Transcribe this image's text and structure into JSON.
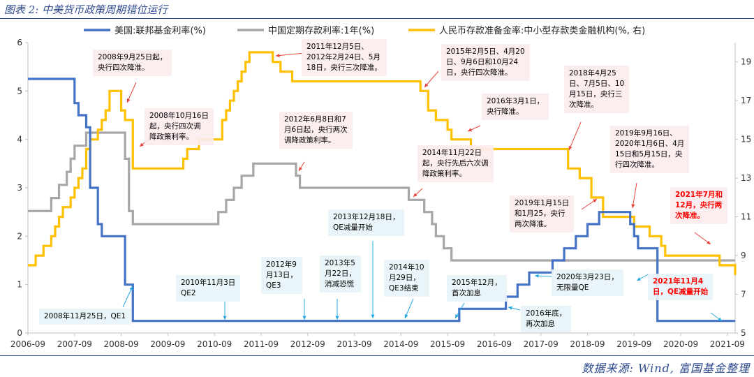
{
  "figure": {
    "title": "图表 2: 中美货币政策周期错位运行",
    "source": "数据来源: Wind, 富国基金整理"
  },
  "chart_data": {
    "type": "line",
    "legend": {
      "placement": "top",
      "items": [
        {
          "label": "美国:联邦基金利率(%)",
          "color": "#4472c4"
        },
        {
          "label": "中国定期存款利率:1年(%)",
          "color": "#a6a6a6"
        },
        {
          "label": "人民币存款准备金率:中小型存款类金融机构(%, 右)",
          "color": "#ffc000"
        }
      ]
    },
    "x_axis": {
      "ticks": [
        "2006-09",
        "2007-09",
        "2008-09",
        "2009-09",
        "2010-09",
        "2011-09",
        "2012-09",
        "2013-09",
        "2014-09",
        "2015-09",
        "2016-09",
        "2017-09",
        "2018-09",
        "2019-09",
        "2020-09",
        "2021-09"
      ],
      "range": [
        "2006-09",
        "2021-11"
      ]
    },
    "y_axis_left": {
      "ticks": [
        "0",
        "1",
        "2",
        "3",
        "4",
        "5",
        "6"
      ],
      "range": [
        0,
        6
      ]
    },
    "y_axis_right": {
      "ticks": [
        "5",
        "7",
        "9",
        "11",
        "13",
        "15",
        "17",
        "19"
      ],
      "range": [
        5,
        20
      ]
    },
    "grid": false,
    "series": [
      {
        "name": "美国:联邦基金利率(%)",
        "axis": "left",
        "color": "#4472c4",
        "points": [
          [
            "2006-09",
            5.25
          ],
          [
            "2007-08",
            5.25
          ],
          [
            "2007-09",
            4.75
          ],
          [
            "2007-10",
            4.5
          ],
          [
            "2007-12",
            4.25
          ],
          [
            "2008-01",
            3.0
          ],
          [
            "2008-03",
            2.25
          ],
          [
            "2008-04",
            2.0
          ],
          [
            "2008-10",
            1.0
          ],
          [
            "2008-12",
            0.25
          ],
          [
            "2015-12",
            0.5
          ],
          [
            "2016-12",
            0.75
          ],
          [
            "2017-03",
            1.0
          ],
          [
            "2017-06",
            1.25
          ],
          [
            "2017-12",
            1.5
          ],
          [
            "2018-03",
            1.75
          ],
          [
            "2018-06",
            2.0
          ],
          [
            "2018-09",
            2.25
          ],
          [
            "2018-12",
            2.5
          ],
          [
            "2019-08",
            2.25
          ],
          [
            "2019-09",
            2.0
          ],
          [
            "2019-10",
            1.75
          ],
          [
            "2020-03",
            0.25
          ],
          [
            "2021-11",
            0.25
          ]
        ]
      },
      {
        "name": "中国定期存款利率:1年(%)",
        "axis": "left",
        "color": "#a6a6a6",
        "points": [
          [
            "2006-09",
            2.52
          ],
          [
            "2007-03",
            2.79
          ],
          [
            "2007-05",
            3.06
          ],
          [
            "2007-07",
            3.33
          ],
          [
            "2007-08",
            3.6
          ],
          [
            "2007-09",
            3.87
          ],
          [
            "2007-12",
            4.14
          ],
          [
            "2008-10",
            3.87
          ],
          [
            "2008-10",
            3.6
          ],
          [
            "2008-11",
            2.52
          ],
          [
            "2008-12",
            2.25
          ],
          [
            "2010-10",
            2.5
          ],
          [
            "2010-12",
            2.75
          ],
          [
            "2011-02",
            3.0
          ],
          [
            "2011-04",
            3.25
          ],
          [
            "2011-07",
            3.5
          ],
          [
            "2012-06",
            3.25
          ],
          [
            "2012-07",
            3.0
          ],
          [
            "2014-11",
            2.75
          ],
          [
            "2015-03",
            2.5
          ],
          [
            "2015-05",
            2.25
          ],
          [
            "2015-06",
            2.0
          ],
          [
            "2015-08",
            1.75
          ],
          [
            "2015-10",
            1.5
          ],
          [
            "2021-11",
            1.5
          ]
        ]
      },
      {
        "name": "人民币存款准备金率:中小型存款类金融机构(%, 右)",
        "axis": "right",
        "color": "#ffc000",
        "points": [
          [
            "2006-09",
            8.5
          ],
          [
            "2006-11",
            9.0
          ],
          [
            "2007-01",
            9.5
          ],
          [
            "2007-03",
            10.0
          ],
          [
            "2007-04",
            10.5
          ],
          [
            "2007-05",
            11.0
          ],
          [
            "2007-06",
            11.5
          ],
          [
            "2007-08",
            12.0
          ],
          [
            "2007-09",
            12.5
          ],
          [
            "2007-10",
            13.0
          ],
          [
            "2007-11",
            13.5
          ],
          [
            "2007-12",
            14.5
          ],
          [
            "2008-01",
            15.0
          ],
          [
            "2008-03",
            15.5
          ],
          [
            "2008-04",
            16.0
          ],
          [
            "2008-05",
            16.5
          ],
          [
            "2008-06",
            17.5
          ],
          [
            "2008-09",
            16.5
          ],
          [
            "2008-10",
            16.0
          ],
          [
            "2008-12",
            14.0
          ],
          [
            "2008-12",
            13.5
          ],
          [
            "2010-01",
            14.0
          ],
          [
            "2010-02",
            14.5
          ],
          [
            "2010-05",
            15.0
          ],
          [
            "2010-11",
            15.5
          ],
          [
            "2010-11",
            16.0
          ],
          [
            "2010-12",
            16.5
          ],
          [
            "2011-01",
            17.0
          ],
          [
            "2011-02",
            17.5
          ],
          [
            "2011-03",
            18.0
          ],
          [
            "2011-04",
            18.5
          ],
          [
            "2011-05",
            19.0
          ],
          [
            "2011-06",
            19.5
          ],
          [
            "2011-12",
            19.0
          ],
          [
            "2012-02",
            18.5
          ],
          [
            "2012-05",
            18.0
          ],
          [
            "2015-02",
            17.5
          ],
          [
            "2015-04",
            16.5
          ],
          [
            "2015-06",
            16.0
          ],
          [
            "2015-09",
            15.5
          ],
          [
            "2015-10",
            15.0
          ],
          [
            "2016-03",
            14.5
          ],
          [
            "2018-04",
            13.5
          ],
          [
            "2018-07",
            13.0
          ],
          [
            "2018-10",
            12.0
          ],
          [
            "2019-01",
            11.5
          ],
          [
            "2019-01",
            11.0
          ],
          [
            "2019-09",
            10.5
          ],
          [
            "2020-01",
            10.0
          ],
          [
            "2020-04",
            9.5
          ],
          [
            "2020-05",
            9.0
          ],
          [
            "2021-07",
            8.5
          ],
          [
            "2021-11",
            8.0
          ]
        ]
      }
    ],
    "annotations": [
      {
        "id": "a1",
        "text": "2008年9月25日起，\n央行四次降准。",
        "style": "pink"
      },
      {
        "id": "a2",
        "text": "2008年10月16日\n起，央行四次调\n降政策利率。",
        "style": "pink"
      },
      {
        "id": "a3",
        "text": "2011年12月5日、\n2012年2月24日、5月\n18日，央行三次降准。",
        "style": "pink"
      },
      {
        "id": "a4",
        "text": "2015年2月5日、4月20\n日、9月6日和10月24\n日，央行四次降准。",
        "style": "pink"
      },
      {
        "id": "a5",
        "text": "2016年3月1日，\n央行降准。",
        "style": "pink"
      },
      {
        "id": "a6",
        "text": "2018年4月25\n日、7月5日、10\n月15日，央行三\n次降准。",
        "style": "pink"
      },
      {
        "id": "a7",
        "text": "2012年6月8日和7\n月6日起，央行两次\n调降政策利率。",
        "style": "pink"
      },
      {
        "id": "a8",
        "text": "2014年11月22日\n起，央行先后六次调\n降政策利率。",
        "style": "pink"
      },
      {
        "id": "a9",
        "text": "2019年9月16日、\n2020年1月6日、4月\n15日和5月15日，央\n行四次降准。",
        "style": "pink"
      },
      {
        "id": "a10",
        "text": "2021年7月和\n12月，央行两\n次降准。",
        "style": "pink-red"
      },
      {
        "id": "a11",
        "text": "2019年1月15日\n和1月25，央行\n两次降准。",
        "style": "pink"
      },
      {
        "id": "a12",
        "text": "2013年12月18日，\nQE减量开始",
        "style": "blue"
      },
      {
        "id": "a13",
        "text": "2012年9\n月13日，\nQE3",
        "style": "blue"
      },
      {
        "id": "a14",
        "text": "2013年5\n月22日，\n消减恐慌",
        "style": "blue"
      },
      {
        "id": "a15",
        "text": "2014年10\n月29日，\nQE3结束",
        "style": "blue"
      },
      {
        "id": "a16",
        "text": "2010年11月3日\nQE2",
        "style": "blue"
      },
      {
        "id": "a17",
        "text": "2015年12月，\n首次加息",
        "style": "blue"
      },
      {
        "id": "a18",
        "text": "2020年3月23日，\n无限量QE",
        "style": "blue"
      },
      {
        "id": "a19",
        "text": "2021年11月4\n日，QE减量开始",
        "style": "blue-red"
      },
      {
        "id": "a20",
        "text": "2008年11月25日，QE1",
        "style": "blue"
      },
      {
        "id": "a21",
        "text": "2016年底，\n再次加息",
        "style": "blue"
      }
    ]
  }
}
